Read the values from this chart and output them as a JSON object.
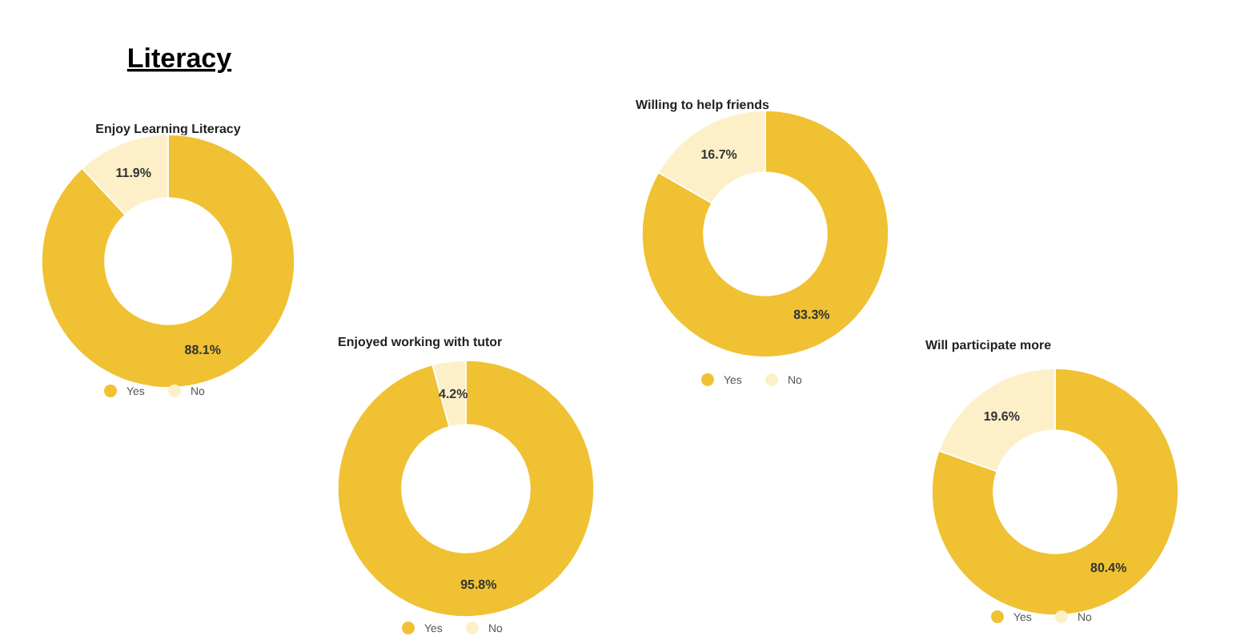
{
  "chart_data": [
    {
      "type": "donut",
      "title": "Literacy",
      "subtitle": "Enjoy Learning Literacy",
      "categories": [
        "Yes",
        "No"
      ],
      "values": [
        88.1,
        11.9
      ],
      "value_labels": [
        "88.1%",
        "11.9%"
      ],
      "colors": [
        "#f0c132",
        "#fdf0c9"
      ],
      "legend": "bottom"
    },
    {
      "type": "donut",
      "subtitle": "Enjoyed working with tutor",
      "categories": [
        "Yes",
        "No"
      ],
      "values": [
        95.8,
        4.2
      ],
      "value_labels": [
        "95.8%",
        "4.2%"
      ],
      "colors": [
        "#f0c132",
        "#fdf0c9"
      ],
      "legend": "bottom"
    },
    {
      "type": "donut",
      "subtitle": "Willing to help friends",
      "categories": [
        "Yes",
        "No"
      ],
      "values": [
        83.3,
        16.7
      ],
      "value_labels": [
        "83.3%",
        "16.7%"
      ],
      "colors": [
        "#f0c132",
        "#fdf0c9"
      ],
      "legend": "bottom"
    },
    {
      "type": "donut",
      "subtitle": "Will participate more",
      "categories": [
        "Yes",
        "No"
      ],
      "values": [
        80.4,
        19.6
      ],
      "value_labels": [
        "80.4%",
        "19.6%"
      ],
      "colors": [
        "#f0c132",
        "#fdf0c9"
      ],
      "legend": "bottom"
    }
  ]
}
